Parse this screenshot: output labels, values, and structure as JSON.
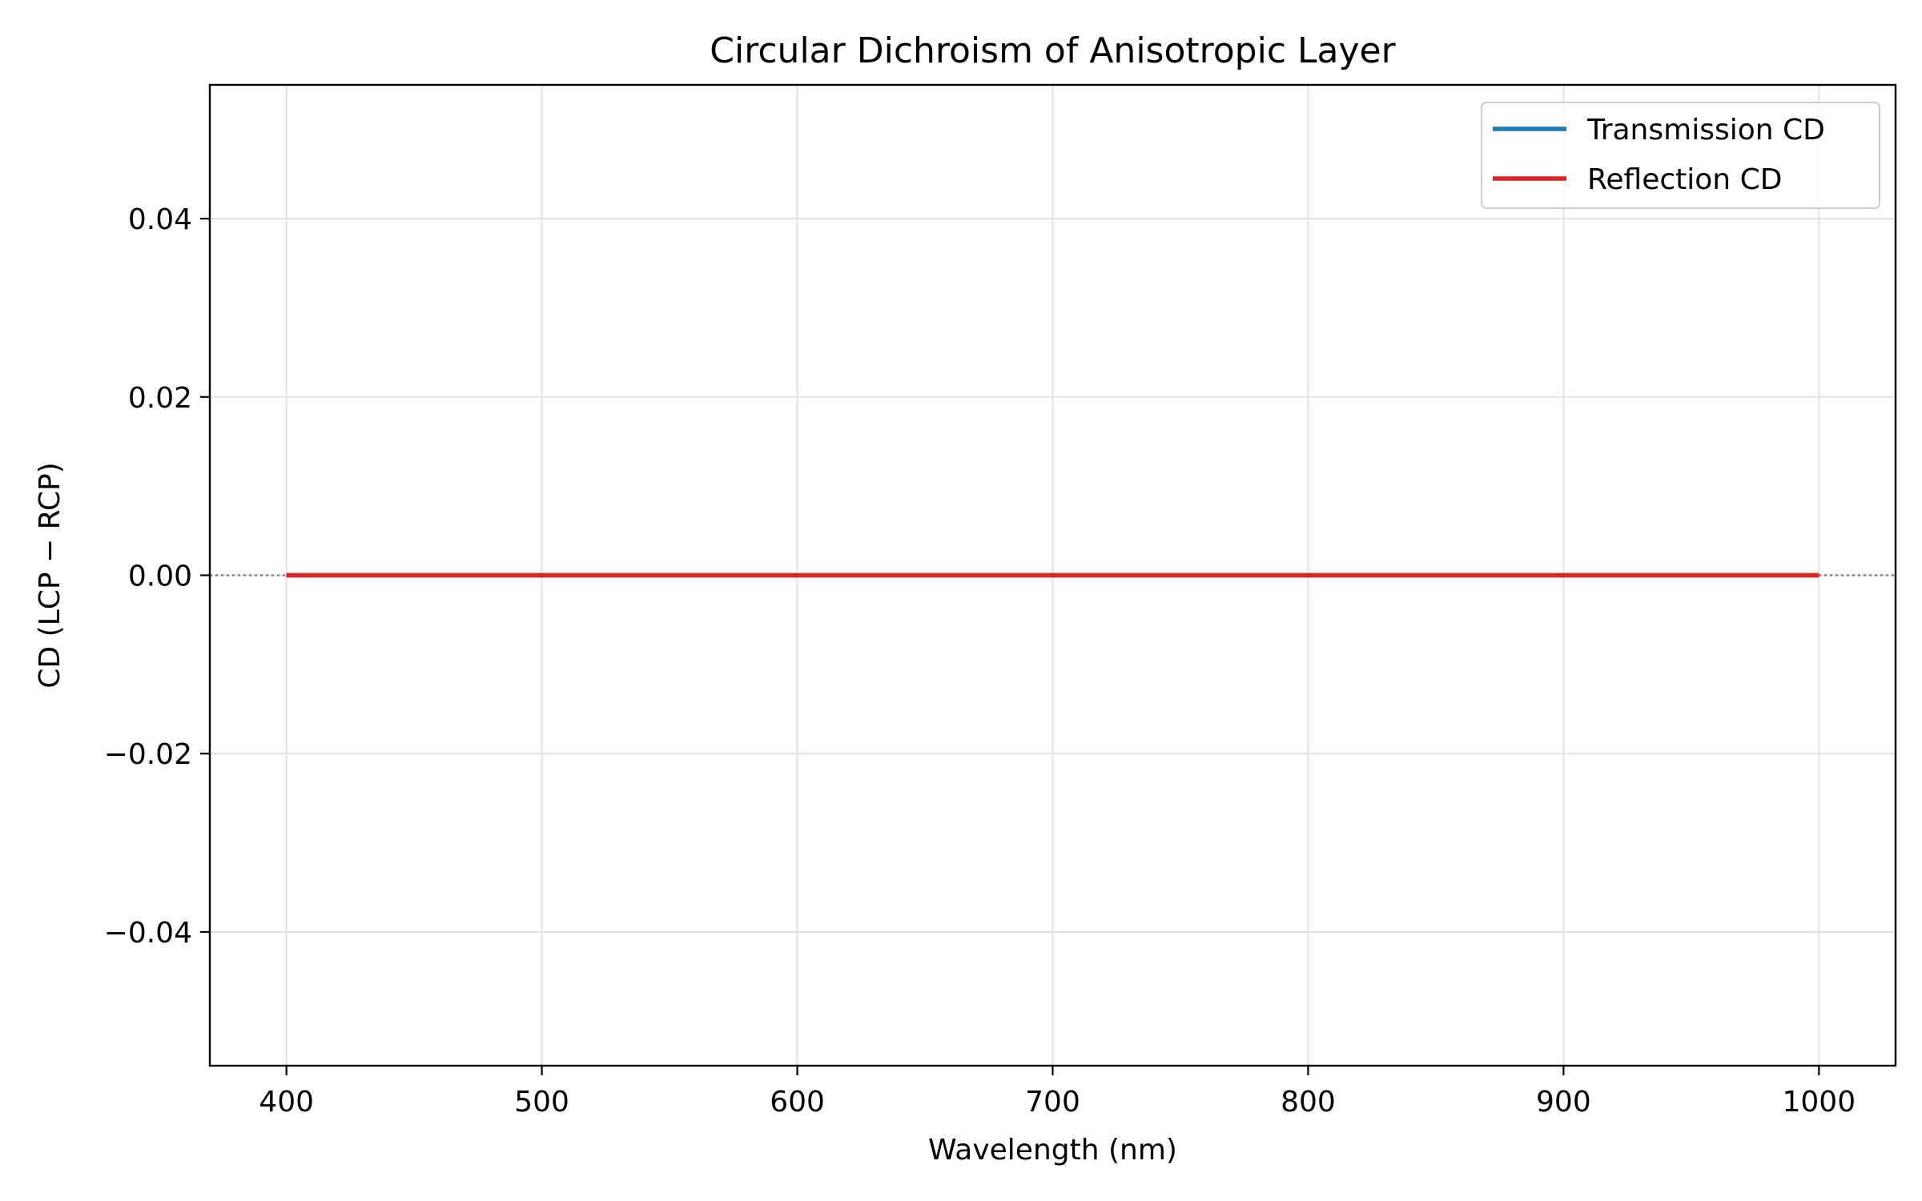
{
  "chart_data": {
    "type": "line",
    "title": "Circular Dichroism of Anisotropic Layer",
    "xlabel": "Wavelength (nm)",
    "ylabel": "CD (LCP − RCP)",
    "xlim": [
      370,
      1030
    ],
    "ylim": [
      -0.055,
      0.055
    ],
    "x_ticks": [
      400,
      500,
      600,
      700,
      800,
      900,
      1000
    ],
    "x_tick_labels": [
      "400",
      "500",
      "600",
      "700",
      "800",
      "900",
      "1000"
    ],
    "y_ticks": [
      -0.04,
      -0.02,
      0.0,
      0.02,
      0.04
    ],
    "y_tick_labels": [
      "−0.04",
      "−0.02",
      "0.00",
      "0.02",
      "0.04"
    ],
    "grid": true,
    "legend_position": "top-right",
    "reference_line": {
      "y": 0,
      "style": "dotted",
      "color": "#808080"
    },
    "x": [
      400,
      500,
      600,
      700,
      800,
      900,
      1000
    ],
    "series": [
      {
        "name": "Transmission CD",
        "color": "#1f77b4",
        "values": [
          0,
          0,
          0,
          0,
          0,
          0,
          0
        ]
      },
      {
        "name": "Reflection CD",
        "color": "#d62728",
        "values": [
          0,
          0,
          0,
          0,
          0,
          0,
          0
        ]
      }
    ]
  }
}
